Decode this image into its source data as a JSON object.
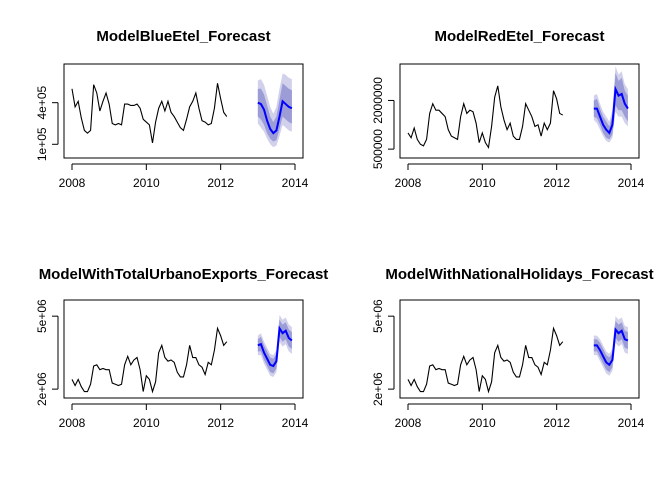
{
  "chart_data": [
    {
      "type": "line",
      "title": "ModelBlueEtel_Forecast",
      "xlabel": "",
      "ylabel": "",
      "xlim": [
        2008,
        2014
      ],
      "ylim": [
        30000,
        650000
      ],
      "x_ticks": [
        2008,
        2010,
        2012,
        2014
      ],
      "x_tick_labels": [
        "2008",
        "2010",
        "2012",
        "2014"
      ],
      "y_ticks": [
        100000,
        400000
      ],
      "y_tick_labels": [
        "1e+05",
        "4e+05"
      ],
      "series": [
        {
          "role": "observed",
          "color": "#000000",
          "x_start": 2008.0,
          "step": 0.0833,
          "values": [
            500000,
            370000,
            410000,
            290000,
            200000,
            180000,
            200000,
            530000,
            470000,
            340000,
            410000,
            470000,
            390000,
            250000,
            240000,
            250000,
            240000,
            390000,
            390000,
            380000,
            380000,
            390000,
            360000,
            280000,
            260000,
            240000,
            110000,
            260000,
            360000,
            410000,
            340000,
            410000,
            330000,
            300000,
            260000,
            220000,
            200000,
            280000,
            370000,
            410000,
            470000,
            360000,
            270000,
            260000,
            240000,
            250000,
            360000,
            540000,
            430000,
            330000,
            300000
          ]
        },
        {
          "role": "forecast",
          "color": "#0000ff",
          "x_start": 2013.0,
          "step": 0.0833,
          "values": [
            400000,
            390000,
            350000,
            270000,
            210000,
            180000,
            200000,
            300000,
            410000,
            390000,
            370000,
            360000
          ]
        },
        {
          "role": "interval-80",
          "color": "#9c9cd7",
          "x_start": 2013.0,
          "step": 0.0833,
          "lower": [
            300000,
            280000,
            240000,
            180000,
            140000,
            120000,
            130000,
            210000,
            300000,
            280000,
            260000,
            250000
          ],
          "upper": [
            500000,
            500000,
            460000,
            380000,
            300000,
            260000,
            300000,
            420000,
            540000,
            520000,
            500000,
            490000
          ]
        },
        {
          "role": "interval-95",
          "color": "#d1d1ec",
          "x_start": 2013.0,
          "step": 0.0833,
          "lower": [
            250000,
            220000,
            190000,
            140000,
            100000,
            80000,
            90000,
            160000,
            240000,
            220000,
            200000,
            190000
          ],
          "upper": [
            560000,
            570000,
            530000,
            450000,
            370000,
            320000,
            370000,
            500000,
            610000,
            600000,
            580000,
            570000
          ]
        }
      ]
    },
    {
      "type": "line",
      "title": "ModelRedEtel_Forecast",
      "xlabel": "",
      "ylabel": "",
      "xlim": [
        2008,
        2014
      ],
      "ylim": [
        350000,
        3000000
      ],
      "x_ticks": [
        2008,
        2010,
        2012,
        2014
      ],
      "x_tick_labels": [
        "2008",
        "2010",
        "2012",
        "2014"
      ],
      "y_ticks": [
        500000,
        2000000
      ],
      "y_tick_labels": [
        "500000",
        "2000000"
      ],
      "series": [
        {
          "role": "observed",
          "color": "#000000",
          "x_start": 2008.0,
          "step": 0.0833,
          "values": [
            1000000,
            850000,
            1150000,
            800000,
            650000,
            600000,
            800000,
            1600000,
            1900000,
            1700000,
            1700000,
            1600000,
            1500000,
            1100000,
            900000,
            850000,
            800000,
            1500000,
            1900000,
            1600000,
            1700000,
            1650000,
            1300000,
            700000,
            1000000,
            700000,
            550000,
            1200000,
            2100000,
            2450000,
            1800000,
            1400000,
            1100000,
            1300000,
            900000,
            800000,
            800000,
            1200000,
            1900000,
            1700000,
            1500000,
            1200000,
            1250000,
            900000,
            1300000,
            1100000,
            1300000,
            2300000,
            2050000,
            1600000,
            1550000
          ]
        },
        {
          "role": "forecast",
          "color": "#0000ff",
          "x_start": 2013.0,
          "step": 0.0833,
          "values": [
            1750000,
            1750000,
            1500000,
            1250000,
            1100000,
            1000000,
            1250000,
            2350000,
            2150000,
            2200000,
            1900000,
            1750000
          ]
        },
        {
          "role": "interval-80",
          "color": "#9c9cd7",
          "x_start": 2013.0,
          "step": 0.0833,
          "lower": [
            1500000,
            1450000,
            1250000,
            1000000,
            850000,
            800000,
            950000,
            1850000,
            1700000,
            1700000,
            1500000,
            1350000
          ],
          "upper": [
            2000000,
            2050000,
            1750000,
            1500000,
            1350000,
            1200000,
            1550000,
            2850000,
            2600000,
            2700000,
            2300000,
            2150000
          ]
        },
        {
          "role": "interval-95",
          "color": "#d1d1ec",
          "x_start": 2013.0,
          "step": 0.0833,
          "lower": [
            1400000,
            1300000,
            1100000,
            900000,
            750000,
            700000,
            850000,
            1650000,
            1500000,
            1500000,
            1300000,
            1200000
          ],
          "upper": [
            2150000,
            2200000,
            1900000,
            1650000,
            1500000,
            1350000,
            1700000,
            3050000,
            2800000,
            2900000,
            2500000,
            2350000
          ]
        }
      ]
    },
    {
      "type": "line",
      "title": "ModelWithTotalUrbanoExports_Forecast",
      "xlabel": "",
      "ylabel": "",
      "xlim": [
        2008,
        2014
      ],
      "ylim": [
        1800000,
        5500000
      ],
      "x_ticks": [
        2008,
        2010,
        2012,
        2014
      ],
      "x_tick_labels": [
        "2008",
        "2010",
        "2012",
        "2014"
      ],
      "y_ticks": [
        2000000,
        5000000
      ],
      "y_tick_labels": [
        "2e+06",
        "5e+06"
      ],
      "series": [
        {
          "role": "observed",
          "color": "#000000",
          "x_start": 2008.0,
          "step": 0.0833,
          "values": [
            2400000,
            2150000,
            2400000,
            2100000,
            1900000,
            1900000,
            2200000,
            2950000,
            3000000,
            2800000,
            2850000,
            2800000,
            2800000,
            2250000,
            2200000,
            2150000,
            2200000,
            3000000,
            3350000,
            3000000,
            3200000,
            3300000,
            2800000,
            1900000,
            2550000,
            2400000,
            1900000,
            2300000,
            3500000,
            3800000,
            3300000,
            3150000,
            3200000,
            3100000,
            2700000,
            2500000,
            2500000,
            3000000,
            3800000,
            3300000,
            3300000,
            3000000,
            2900000,
            2600000,
            3100000,
            3000000,
            3600000,
            4500000,
            4200000,
            3800000,
            3950000
          ]
        },
        {
          "role": "forecast",
          "color": "#0000ff",
          "x_start": 2013.0,
          "step": 0.0833,
          "values": [
            3800000,
            3850000,
            3500000,
            3250000,
            3000000,
            2950000,
            3150000,
            4500000,
            4300000,
            4400000,
            4100000,
            4000000
          ]
        },
        {
          "role": "interval-80",
          "color": "#9c9cd7",
          "x_start": 2013.0,
          "step": 0.0833,
          "lower": [
            3550000,
            3550000,
            3200000,
            2950000,
            2700000,
            2650000,
            2850000,
            4150000,
            3950000,
            4050000,
            3750000,
            3650000
          ],
          "upper": [
            4050000,
            4150000,
            3800000,
            3550000,
            3300000,
            3250000,
            3450000,
            4850000,
            4650000,
            4750000,
            4450000,
            4350000
          ]
        },
        {
          "role": "interval-95",
          "color": "#d1d1ec",
          "x_start": 2013.0,
          "step": 0.0833,
          "lower": [
            3400000,
            3400000,
            3050000,
            2800000,
            2550000,
            2500000,
            2700000,
            3950000,
            3750000,
            3850000,
            3550000,
            3450000
          ],
          "upper": [
            4200000,
            4300000,
            3950000,
            3700000,
            3450000,
            3400000,
            3600000,
            5050000,
            4850000,
            4950000,
            4650000,
            4550000
          ]
        }
      ]
    },
    {
      "type": "line",
      "title": "ModelWithNationalHolidays_Forecast",
      "xlabel": "",
      "ylabel": "",
      "xlim": [
        2008,
        2014
      ],
      "ylim": [
        1800000,
        5500000
      ],
      "x_ticks": [
        2008,
        2010,
        2012,
        2014
      ],
      "x_tick_labels": [
        "2008",
        "2010",
        "2012",
        "2014"
      ],
      "y_ticks": [
        2000000,
        5000000
      ],
      "y_tick_labels": [
        "2e+06",
        "5e+06"
      ],
      "series": [
        {
          "role": "observed",
          "color": "#000000",
          "x_start": 2008.0,
          "step": 0.0833,
          "values": [
            2400000,
            2150000,
            2400000,
            2100000,
            1900000,
            1900000,
            2200000,
            2950000,
            3000000,
            2800000,
            2850000,
            2800000,
            2800000,
            2250000,
            2200000,
            2150000,
            2200000,
            3000000,
            3350000,
            3000000,
            3200000,
            3300000,
            2800000,
            1900000,
            2550000,
            2400000,
            1900000,
            2300000,
            3500000,
            3800000,
            3300000,
            3150000,
            3200000,
            3100000,
            2700000,
            2500000,
            2500000,
            3000000,
            3800000,
            3300000,
            3300000,
            3000000,
            2900000,
            2600000,
            3100000,
            3000000,
            3600000,
            4500000,
            4200000,
            3800000,
            3950000
          ]
        },
        {
          "role": "forecast",
          "color": "#0000ff",
          "x_start": 2013.0,
          "step": 0.0833,
          "values": [
            3800000,
            3800000,
            3600000,
            3350000,
            3100000,
            3000000,
            3200000,
            4450000,
            4300000,
            4400000,
            4050000,
            4000000
          ]
        },
        {
          "role": "interval-80",
          "color": "#9c9cd7",
          "x_start": 2013.0,
          "step": 0.0833,
          "lower": [
            3550000,
            3550000,
            3300000,
            3050000,
            2800000,
            2700000,
            2900000,
            4100000,
            3950000,
            4050000,
            3700000,
            3650000
          ],
          "upper": [
            4050000,
            4050000,
            3900000,
            3650000,
            3400000,
            3300000,
            3500000,
            4800000,
            4650000,
            4750000,
            4400000,
            4350000
          ]
        },
        {
          "role": "interval-95",
          "color": "#d1d1ec",
          "x_start": 2013.0,
          "step": 0.0833,
          "lower": [
            3400000,
            3400000,
            3150000,
            2900000,
            2650000,
            2550000,
            2750000,
            3900000,
            3750000,
            3850000,
            3500000,
            3450000
          ],
          "upper": [
            4200000,
            4200000,
            4050000,
            3800000,
            3550000,
            3450000,
            3650000,
            5000000,
            4850000,
            4950000,
            4600000,
            4550000
          ]
        }
      ]
    }
  ]
}
